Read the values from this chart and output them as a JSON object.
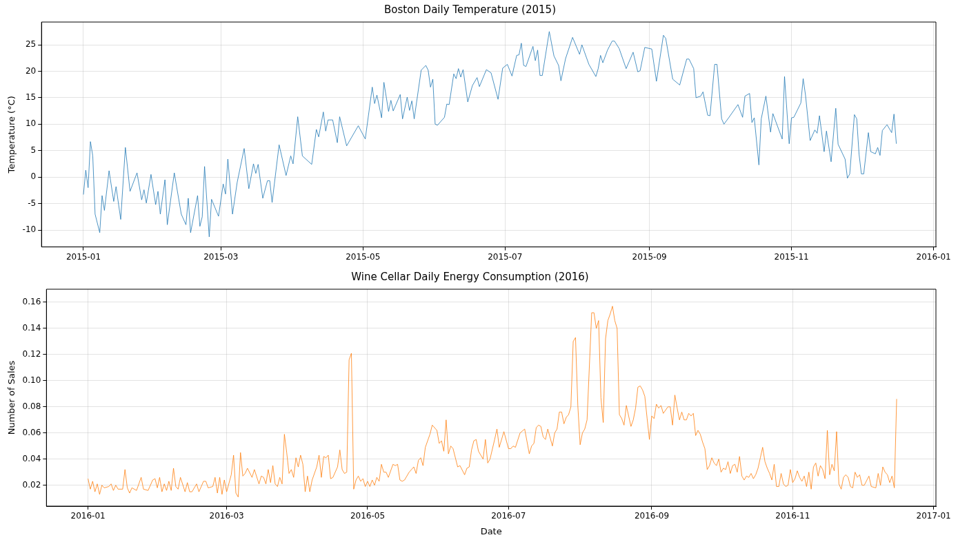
{
  "chart_data": [
    {
      "type": "line",
      "title": "Boston Daily Temperature (2015)",
      "ylabel": "Temperature (°C)",
      "color": "#1f77b4",
      "grid": true,
      "xlim": [
        "2014-12-14",
        "2016-01-02"
      ],
      "xticks": [
        "2015-01",
        "2015-03",
        "2015-05",
        "2015-07",
        "2015-09",
        "2015-11",
        "2016-01"
      ],
      "ylim": [
        -13.2,
        29.3
      ],
      "yticks": [
        -10,
        -5,
        0,
        5,
        10,
        15,
        20,
        25
      ],
      "x": [
        "2015-01-01",
        "2015-01-02",
        "2015-01-03",
        "2015-01-04",
        "2015-01-05",
        "2015-01-06",
        "2015-01-08",
        "2015-01-09",
        "2015-01-10",
        "2015-01-12",
        "2015-01-14",
        "2015-01-15",
        "2015-01-17",
        "2015-01-19",
        "2015-01-21",
        "2015-01-24",
        "2015-01-26",
        "2015-01-27",
        "2015-01-28",
        "2015-01-30",
        "2015-02-01",
        "2015-02-02",
        "2015-02-03",
        "2015-02-05",
        "2015-02-06",
        "2015-02-09",
        "2015-02-12",
        "2015-02-14",
        "2015-02-15",
        "2015-02-16",
        "2015-02-19",
        "2015-02-20",
        "2015-02-21",
        "2015-02-22",
        "2015-02-24",
        "2015-02-25",
        "2015-02-28",
        "2015-03-02",
        "2015-03-03",
        "2015-03-04",
        "2015-03-06",
        "2015-03-08",
        "2015-03-11",
        "2015-03-13",
        "2015-03-15",
        "2015-03-16",
        "2015-03-17",
        "2015-03-19",
        "2015-03-21",
        "2015-03-22",
        "2015-03-23",
        "2015-03-26",
        "2015-03-29",
        "2015-03-31",
        "2015-04-01",
        "2015-04-03",
        "2015-04-05",
        "2015-04-09",
        "2015-04-11",
        "2015-04-12",
        "2015-04-14",
        "2015-04-15",
        "2015-04-16",
        "2015-04-18",
        "2015-04-20",
        "2015-04-21",
        "2015-04-24",
        "2015-04-29",
        "2015-05-02",
        "2015-05-05",
        "2015-05-06",
        "2015-05-07",
        "2015-05-09",
        "2015-05-10",
        "2015-05-12",
        "2015-05-13",
        "2015-05-14",
        "2015-05-17",
        "2015-05-18",
        "2015-05-20",
        "2015-05-21",
        "2015-05-22",
        "2015-05-23",
        "2015-05-26",
        "2015-05-28",
        "2015-05-29",
        "2015-05-30",
        "2015-05-31",
        "2015-06-01",
        "2015-06-02",
        "2015-06-05",
        "2015-06-06",
        "2015-06-07",
        "2015-06-09",
        "2015-06-10",
        "2015-06-11",
        "2015-06-12",
        "2015-06-13",
        "2015-06-15",
        "2015-06-17",
        "2015-06-19",
        "2015-06-20",
        "2015-06-23",
        "2015-06-25",
        "2015-06-28",
        "2015-06-30",
        "2015-07-02",
        "2015-07-04",
        "2015-07-06",
        "2015-07-07",
        "2015-07-08",
        "2015-07-09",
        "2015-07-10",
        "2015-07-13",
        "2015-07-14",
        "2015-07-15",
        "2015-07-16",
        "2015-07-17",
        "2015-07-20",
        "2015-07-22",
        "2015-07-24",
        "2015-07-25",
        "2015-07-27",
        "2015-07-30",
        "2015-08-02",
        "2015-08-03",
        "2015-08-06",
        "2015-08-09",
        "2015-08-10",
        "2015-08-11",
        "2015-08-12",
        "2015-08-14",
        "2015-08-16",
        "2015-08-17",
        "2015-08-19",
        "2015-08-22",
        "2015-08-25",
        "2015-08-27",
        "2015-08-28",
        "2015-08-30",
        "2015-09-02",
        "2015-09-04",
        "2015-09-07",
        "2015-09-08",
        "2015-09-11",
        "2015-09-14",
        "2015-09-17",
        "2015-09-18",
        "2015-09-20",
        "2015-09-21",
        "2015-09-23",
        "2015-09-24",
        "2015-09-26",
        "2015-09-27",
        "2015-09-29",
        "2015-09-30",
        "2015-10-02",
        "2015-10-03",
        "2015-10-05",
        "2015-10-09",
        "2015-10-11",
        "2015-10-12",
        "2015-10-14",
        "2015-10-15",
        "2015-10-16",
        "2015-10-18",
        "2015-10-19",
        "2015-10-21",
        "2015-10-23",
        "2015-10-24",
        "2015-10-28",
        "2015-10-29",
        "2015-10-31",
        "2015-11-01",
        "2015-11-02",
        "2015-11-05",
        "2015-11-06",
        "2015-11-07",
        "2015-11-09",
        "2015-11-11",
        "2015-11-12",
        "2015-11-13",
        "2015-11-15",
        "2015-11-16",
        "2015-11-18",
        "2015-11-20",
        "2015-11-21",
        "2015-11-24",
        "2015-11-25",
        "2015-11-26",
        "2015-11-28",
        "2015-11-29",
        "2015-11-30",
        "2015-12-01",
        "2015-12-02",
        "2015-12-04",
        "2015-12-05",
        "2015-12-07",
        "2015-12-08",
        "2015-12-09",
        "2015-12-10",
        "2015-12-12",
        "2015-12-14",
        "2015-12-15",
        "2015-12-16"
      ],
      "values": [
        -3.3,
        1.3,
        -2,
        6.7,
        4,
        -7,
        -10.5,
        -3.5,
        -6.3,
        1.2,
        -4.6,
        -1.8,
        -8,
        5.6,
        -2.7,
        0.8,
        -4.3,
        -2.4,
        -4.9,
        0.5,
        -5.2,
        -2.7,
        -7,
        -0.5,
        -9,
        0.8,
        -7,
        -9,
        -4,
        -10.5,
        -3.5,
        -9.3,
        -7.5,
        2,
        -11.3,
        -4.2,
        -7.4,
        -1.3,
        -3.2,
        3.4,
        -7,
        -1,
        5.4,
        -2.2,
        2.5,
        0.7,
        2.4,
        -4,
        -0.7,
        -0.7,
        -4.8,
        6.1,
        0.3,
        4,
        2.5,
        11.4,
        4,
        2.4,
        9,
        7.6,
        12.3,
        8.7,
        10.8,
        10.8,
        6.5,
        11.4,
        5.9,
        9.7,
        7.2,
        17,
        13.9,
        15.5,
        11.2,
        17.9,
        12.4,
        14.5,
        12.5,
        15.6,
        11,
        15.1,
        12.6,
        14.4,
        11,
        20.2,
        21.1,
        20.2,
        17,
        18.5,
        10,
        9.8,
        11.3,
        13.8,
        13.7,
        19.5,
        18.6,
        20.5,
        18.9,
        20.3,
        14.2,
        17.3,
        18.8,
        17.1,
        20.3,
        19.7,
        14.7,
        20.6,
        21.3,
        19.1,
        23,
        23.1,
        25.3,
        21.1,
        20.9,
        24.7,
        22,
        24,
        19.2,
        19.2,
        27.5,
        22.9,
        21.1,
        18.2,
        22.4,
        26.4,
        23.2,
        25,
        21.3,
        19,
        20.5,
        23,
        21.6,
        24,
        25.7,
        25.7,
        24.3,
        20.5,
        23.6,
        19.9,
        20.1,
        24.5,
        24.2,
        18.1,
        26.8,
        26.2,
        18.5,
        17.4,
        22.3,
        22.3,
        20.5,
        15,
        15.3,
        16.1,
        11.7,
        11.6,
        21.3,
        21.3,
        11,
        10,
        11.2,
        13.7,
        11.3,
        15.3,
        15.8,
        10.3,
        11.2,
        2.3,
        11,
        15.3,
        8.5,
        12,
        7.2,
        19,
        6.3,
        11.2,
        11.3,
        14,
        18.6,
        15.5,
        6.9,
        8.9,
        8.3,
        11.6,
        4.8,
        8.7,
        2.9,
        13,
        6.2,
        3.4,
        -0.2,
        0.6,
        11.8,
        11,
        4.3,
        0.6,
        0.6,
        8.4,
        4.8,
        4.4,
        5.6,
        4.1,
        8.8,
        9.9,
        8.4,
        11.9,
        6.3
      ]
    },
    {
      "type": "line",
      "title": "Wine Cellar Daily Energy Consumption (2016)",
      "xlabel": "Date",
      "ylabel": "Number of Sales",
      "color": "#ff7f0e",
      "grid": true,
      "xlim": [
        "2015-12-14",
        "2017-01-02"
      ],
      "xticks": [
        "2016-01",
        "2016-03",
        "2016-05",
        "2016-07",
        "2016-09",
        "2016-11",
        "2017-01"
      ],
      "ylim": [
        0.004,
        0.17
      ],
      "yticks": [
        {
          "value": 0.02,
          "label": "0.02"
        },
        {
          "value": 0.04,
          "label": "0.04"
        },
        {
          "value": 0.06,
          "label": "0.06"
        },
        {
          "value": 0.08,
          "label": "0.08"
        },
        {
          "value": 0.1,
          "label": "0.10"
        },
        {
          "value": 0.12,
          "label": "0.12"
        },
        {
          "value": 0.14,
          "label": "0.14"
        },
        {
          "value": 0.16,
          "label": "0.16"
        }
      ],
      "x": [
        "2016-01-01",
        "2016-01-02",
        "2016-01-03",
        "2016-01-04",
        "2016-01-05",
        "2016-01-06",
        "2016-01-07",
        "2016-01-08",
        "2016-01-10",
        "2016-01-11",
        "2016-01-12",
        "2016-01-13",
        "2016-01-14",
        "2016-01-16",
        "2016-01-17",
        "2016-01-18",
        "2016-01-19",
        "2016-01-20",
        "2016-01-22",
        "2016-01-24",
        "2016-01-25",
        "2016-01-27",
        "2016-01-29",
        "2016-01-30",
        "2016-01-31",
        "2016-02-01",
        "2016-02-02",
        "2016-02-03",
        "2016-02-04",
        "2016-02-05",
        "2016-02-06",
        "2016-02-07",
        "2016-02-08",
        "2016-02-09",
        "2016-02-10",
        "2016-02-12",
        "2016-02-13",
        "2016-02-14",
        "2016-02-15",
        "2016-02-17",
        "2016-02-18",
        "2016-02-20",
        "2016-02-21",
        "2016-02-22",
        "2016-02-24",
        "2016-02-25",
        "2016-02-26",
        "2016-02-27",
        "2016-02-28",
        "2016-02-29",
        "2016-03-01",
        "2016-03-03",
        "2016-03-04",
        "2016-03-05",
        "2016-03-06",
        "2016-03-07",
        "2016-03-08",
        "2016-03-09",
        "2016-03-10",
        "2016-03-12",
        "2016-03-13",
        "2016-03-15",
        "2016-03-16",
        "2016-03-17",
        "2016-03-18",
        "2016-03-19",
        "2016-03-20",
        "2016-03-21",
        "2016-03-22",
        "2016-03-23",
        "2016-03-24",
        "2016-03-25",
        "2016-03-26",
        "2016-03-27",
        "2016-03-28",
        "2016-03-29",
        "2016-03-30",
        "2016-03-31",
        "2016-04-01",
        "2016-04-02",
        "2016-04-03",
        "2016-04-04",
        "2016-04-05",
        "2016-04-06",
        "2016-04-07",
        "2016-04-09",
        "2016-04-10",
        "2016-04-11",
        "2016-04-12",
        "2016-04-13",
        "2016-04-14",
        "2016-04-15",
        "2016-04-16",
        "2016-04-18",
        "2016-04-19",
        "2016-04-20",
        "2016-04-21",
        "2016-04-22",
        "2016-04-23",
        "2016-04-24",
        "2016-04-25",
        "2016-04-26",
        "2016-04-27",
        "2016-04-28",
        "2016-04-29",
        "2016-04-30",
        "2016-05-01",
        "2016-05-02",
        "2016-05-03",
        "2016-05-04",
        "2016-05-05",
        "2016-05-06",
        "2016-05-07",
        "2016-05-08",
        "2016-05-09",
        "2016-05-10",
        "2016-05-12",
        "2016-05-13",
        "2016-05-14",
        "2016-05-15",
        "2016-05-16",
        "2016-05-17",
        "2016-05-19",
        "2016-05-20",
        "2016-05-21",
        "2016-05-22",
        "2016-05-23",
        "2016-05-24",
        "2016-05-25",
        "2016-05-26",
        "2016-05-28",
        "2016-05-29",
        "2016-05-31",
        "2016-06-01",
        "2016-06-02",
        "2016-06-03",
        "2016-06-04",
        "2016-06-05",
        "2016-06-06",
        "2016-06-07",
        "2016-06-09",
        "2016-06-10",
        "2016-06-12",
        "2016-06-13",
        "2016-06-14",
        "2016-06-15",
        "2016-06-16",
        "2016-06-17",
        "2016-06-18",
        "2016-06-20",
        "2016-06-21",
        "2016-06-22",
        "2016-06-23",
        "2016-06-25",
        "2016-06-26",
        "2016-06-27",
        "2016-06-29",
        "2016-07-01",
        "2016-07-02",
        "2016-07-03",
        "2016-07-04",
        "2016-07-06",
        "2016-07-08",
        "2016-07-10",
        "2016-07-11",
        "2016-07-12",
        "2016-07-13",
        "2016-07-14",
        "2016-07-15",
        "2016-07-16",
        "2016-07-17",
        "2016-07-18",
        "2016-07-20",
        "2016-07-21",
        "2016-07-22",
        "2016-07-23",
        "2016-07-24",
        "2016-07-25",
        "2016-07-26",
        "2016-07-27",
        "2016-07-28",
        "2016-07-29",
        "2016-07-30",
        "2016-07-31",
        "2016-08-01",
        "2016-08-02",
        "2016-08-03",
        "2016-08-04",
        "2016-08-06",
        "2016-08-07",
        "2016-08-08",
        "2016-08-09",
        "2016-08-10",
        "2016-08-11",
        "2016-08-12",
        "2016-08-13",
        "2016-08-14",
        "2016-08-15",
        "2016-08-16",
        "2016-08-17",
        "2016-08-18",
        "2016-08-19",
        "2016-08-20",
        "2016-08-21",
        "2016-08-22",
        "2016-08-23",
        "2016-08-24",
        "2016-08-25",
        "2016-08-26",
        "2016-08-27",
        "2016-08-28",
        "2016-08-29",
        "2016-08-30",
        "2016-08-31",
        "2016-09-01",
        "2016-09-02",
        "2016-09-03",
        "2016-09-04",
        "2016-09-05",
        "2016-09-06",
        "2016-09-08",
        "2016-09-09",
        "2016-09-10",
        "2016-09-11",
        "2016-09-12",
        "2016-09-13",
        "2016-09-14",
        "2016-09-15",
        "2016-09-16",
        "2016-09-17",
        "2016-09-18",
        "2016-09-19",
        "2016-09-20",
        "2016-09-21",
        "2016-09-22",
        "2016-09-23",
        "2016-09-24",
        "2016-09-25",
        "2016-09-26",
        "2016-09-27",
        "2016-09-28",
        "2016-09-29",
        "2016-09-30",
        "2016-10-01",
        "2016-10-02",
        "2016-10-03",
        "2016-10-04",
        "2016-10-05",
        "2016-10-06",
        "2016-10-07",
        "2016-10-08",
        "2016-10-09",
        "2016-10-10",
        "2016-10-11",
        "2016-10-12",
        "2016-10-13",
        "2016-10-14",
        "2016-10-15",
        "2016-10-16",
        "2016-10-17",
        "2016-10-18",
        "2016-10-19",
        "2016-10-20",
        "2016-10-21",
        "2016-10-22",
        "2016-10-23",
        "2016-10-24",
        "2016-10-25",
        "2016-10-26",
        "2016-10-27",
        "2016-10-28",
        "2016-10-29",
        "2016-10-30",
        "2016-10-31",
        "2016-11-01",
        "2016-11-02",
        "2016-11-03",
        "2016-11-04",
        "2016-11-05",
        "2016-11-06",
        "2016-11-07",
        "2016-11-08",
        "2016-11-09",
        "2016-11-10",
        "2016-11-11",
        "2016-11-12",
        "2016-11-13",
        "2016-11-14",
        "2016-11-15",
        "2016-11-16",
        "2016-11-17",
        "2016-11-18",
        "2016-11-19",
        "2016-11-20",
        "2016-11-21",
        "2016-11-22",
        "2016-11-23",
        "2016-11-24",
        "2016-11-25",
        "2016-11-26",
        "2016-11-27",
        "2016-11-28",
        "2016-11-29",
        "2016-11-30",
        "2016-12-01",
        "2016-12-02",
        "2016-12-04",
        "2016-12-05",
        "2016-12-07",
        "2016-12-08",
        "2016-12-09",
        "2016-12-10",
        "2016-12-11",
        "2016-12-12",
        "2016-12-13",
        "2016-12-14",
        "2016-12-15",
        "2016-12-16"
      ],
      "values": [
        0.025,
        0.017,
        0.023,
        0.015,
        0.021,
        0.013,
        0.02,
        0.018,
        0.019,
        0.021,
        0.016,
        0.02,
        0.017,
        0.017,
        0.032,
        0.018,
        0.014,
        0.018,
        0.016,
        0.026,
        0.017,
        0.016,
        0.024,
        0.025,
        0.018,
        0.026,
        0.015,
        0.021,
        0.016,
        0.023,
        0.016,
        0.033,
        0.019,
        0.017,
        0.026,
        0.015,
        0.022,
        0.015,
        0.015,
        0.021,
        0.015,
        0.023,
        0.023,
        0.018,
        0.019,
        0.026,
        0.014,
        0.026,
        0.013,
        0.024,
        0.015,
        0.028,
        0.043,
        0.014,
        0.011,
        0.045,
        0.027,
        0.029,
        0.033,
        0.026,
        0.032,
        0.021,
        0.027,
        0.026,
        0.021,
        0.032,
        0.022,
        0.035,
        0.021,
        0.019,
        0.026,
        0.021,
        0.059,
        0.045,
        0.029,
        0.032,
        0.026,
        0.041,
        0.034,
        0.043,
        0.036,
        0.015,
        0.027,
        0.015,
        0.024,
        0.034,
        0.043,
        0.026,
        0.042,
        0.041,
        0.043,
        0.025,
        0.026,
        0.034,
        0.047,
        0.032,
        0.029,
        0.03,
        0.116,
        0.121,
        0.017,
        0.024,
        0.027,
        0.023,
        0.025,
        0.019,
        0.023,
        0.019,
        0.024,
        0.02,
        0.026,
        0.023,
        0.036,
        0.03,
        0.03,
        0.026,
        0.036,
        0.035,
        0.036,
        0.024,
        0.023,
        0.024,
        0.03,
        0.032,
        0.034,
        0.029,
        0.039,
        0.041,
        0.035,
        0.049,
        0.059,
        0.066,
        0.062,
        0.052,
        0.054,
        0.046,
        0.07,
        0.044,
        0.05,
        0.048,
        0.034,
        0.035,
        0.028,
        0.033,
        0.034,
        0.047,
        0.054,
        0.055,
        0.046,
        0.04,
        0.055,
        0.037,
        0.04,
        0.055,
        0.063,
        0.049,
        0.061,
        0.048,
        0.048,
        0.05,
        0.049,
        0.06,
        0.063,
        0.044,
        0.05,
        0.052,
        0.064,
        0.066,
        0.065,
        0.057,
        0.055,
        0.063,
        0.05,
        0.06,
        0.063,
        0.076,
        0.076,
        0.067,
        0.072,
        0.074,
        0.08,
        0.13,
        0.133,
        0.081,
        0.051,
        0.06,
        0.063,
        0.07,
        0.152,
        0.152,
        0.14,
        0.146,
        0.087,
        0.068,
        0.132,
        0.146,
        0.151,
        0.157,
        0.146,
        0.14,
        0.074,
        0.071,
        0.066,
        0.081,
        0.073,
        0.065,
        0.07,
        0.079,
        0.095,
        0.096,
        0.093,
        0.088,
        0.071,
        0.055,
        0.073,
        0.071,
        0.082,
        0.079,
        0.081,
        0.075,
        0.08,
        0.08,
        0.066,
        0.089,
        0.079,
        0.07,
        0.076,
        0.07,
        0.07,
        0.075,
        0.073,
        0.075,
        0.058,
        0.062,
        0.059,
        0.053,
        0.048,
        0.032,
        0.035,
        0.041,
        0.037,
        0.035,
        0.04,
        0.03,
        0.033,
        0.032,
        0.038,
        0.029,
        0.035,
        0.036,
        0.03,
        0.042,
        0.027,
        0.024,
        0.027,
        0.026,
        0.029,
        0.025,
        0.028,
        0.033,
        0.041,
        0.049,
        0.038,
        0.033,
        0.029,
        0.024,
        0.036,
        0.019,
        0.019,
        0.029,
        0.021,
        0.019,
        0.02,
        0.032,
        0.022,
        0.025,
        0.031,
        0.026,
        0.023,
        0.027,
        0.019,
        0.03,
        0.017,
        0.034,
        0.037,
        0.027,
        0.035,
        0.032,
        0.025,
        0.062,
        0.028,
        0.036,
        0.031,
        0.061,
        0.021,
        0.017,
        0.026,
        0.028,
        0.026,
        0.019,
        0.018,
        0.03,
        0.026,
        0.028,
        0.02,
        0.02,
        0.027,
        0.019,
        0.018,
        0.029,
        0.02,
        0.034,
        0.03,
        0.028,
        0.022,
        0.027,
        0.018,
        0.086
      ]
    }
  ]
}
